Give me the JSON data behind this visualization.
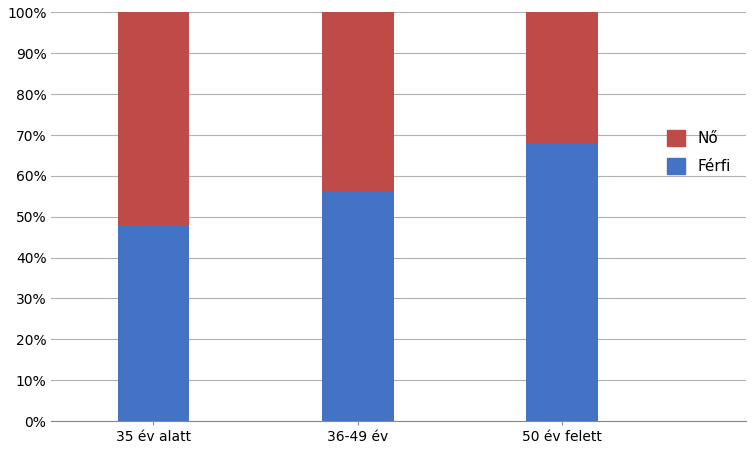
{
  "categories": [
    "35 év alatt",
    "36-49 év",
    "50 év felett"
  ],
  "ferfi_values": [
    48,
    56,
    68
  ],
  "no_values": [
    52,
    44,
    32
  ],
  "ferfi_color": "#4472C4",
  "no_color": "#BE4B48",
  "ferfi_label": "Férfi",
  "no_label": "Nő",
  "ylim": [
    0,
    100
  ],
  "ytick_labels": [
    "0%",
    "10%",
    "20%",
    "30%",
    "40%",
    "50%",
    "60%",
    "70%",
    "80%",
    "90%",
    "100%"
  ],
  "ytick_values": [
    0,
    10,
    20,
    30,
    40,
    50,
    60,
    70,
    80,
    90,
    100
  ],
  "background_color": "#ffffff",
  "grid_color": "#b0b0b0",
  "bar_width": 0.35,
  "legend_fontsize": 11,
  "tick_fontsize": 10
}
